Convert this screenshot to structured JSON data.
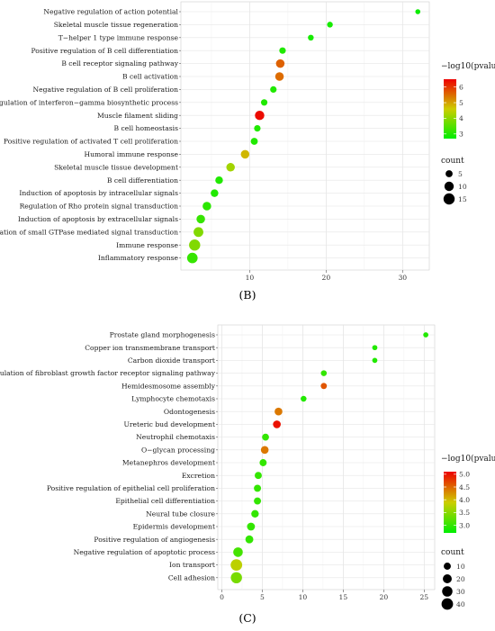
{
  "chart_data": [
    {
      "type": "scatter",
      "panel_label": "(B)",
      "x_ticks": [
        10,
        20,
        30
      ],
      "xlim": [
        1,
        33.5
      ],
      "xlabel": "",
      "ylabel": "",
      "grid": true,
      "color_scale": {
        "title": "−log10(pvalue)",
        "ticks": [
          3,
          4,
          5,
          6
        ],
        "range": [
          2.7,
          6.5
        ],
        "low_color": "#00ee00",
        "high_color": "#ee0000"
      },
      "size_scale": {
        "title": "count",
        "ticks": [
          5,
          10,
          15
        ]
      },
      "points": [
        {
          "term": "Negative regulation of action potential",
          "x": 32,
          "color_value": 2.8,
          "size_value": 2
        },
        {
          "term": "Skeletal muscle tissue regeneration",
          "x": 20.5,
          "color_value": 2.9,
          "size_value": 3
        },
        {
          "term": "T−helper 1 type immune response",
          "x": 18,
          "color_value": 2.9,
          "size_value": 3
        },
        {
          "term": "Positive regulation of B cell differentiation",
          "x": 14.3,
          "color_value": 3.0,
          "size_value": 4
        },
        {
          "term": "B cell receptor signaling pathway",
          "x": 14,
          "color_value": 5.6,
          "size_value": 8
        },
        {
          "term": "B cell activation",
          "x": 13.9,
          "color_value": 5.5,
          "size_value": 8
        },
        {
          "term": "Negative regulation of B cell proliferation",
          "x": 13.1,
          "color_value": 3.0,
          "size_value": 4
        },
        {
          "term": "Positive regulation of interferon−gamma biosynthetic process",
          "x": 11.9,
          "color_value": 3.0,
          "size_value": 4
        },
        {
          "term": "Muscle filament sliding",
          "x": 11.3,
          "color_value": 6.4,
          "size_value": 10
        },
        {
          "term": "B cell homeostasis",
          "x": 11,
          "color_value": 3.0,
          "size_value": 4
        },
        {
          "term": "Positive regulation of activated T cell proliferation",
          "x": 10.6,
          "color_value": 3.0,
          "size_value": 5
        },
        {
          "term": "Humoral immune response",
          "x": 9.4,
          "color_value": 4.8,
          "size_value": 8
        },
        {
          "term": "Skeletal muscle tissue development",
          "x": 7.5,
          "color_value": 4.2,
          "size_value": 8
        },
        {
          "term": "B cell differentiation",
          "x": 6,
          "color_value": 3.0,
          "size_value": 6
        },
        {
          "term": "Induction of apoptosis by intracellular signals",
          "x": 5.4,
          "color_value": 3.0,
          "size_value": 6
        },
        {
          "term": "Regulation of Rho protein signal transduction",
          "x": 4.4,
          "color_value": 3.1,
          "size_value": 8
        },
        {
          "term": "Induction of apoptosis by extracellular signals",
          "x": 3.6,
          "color_value": 3.2,
          "size_value": 8
        },
        {
          "term": "Regulation of small GTPase mediated signal transduction",
          "x": 3.3,
          "color_value": 3.9,
          "size_value": 11
        },
        {
          "term": "Immune response",
          "x": 2.8,
          "color_value": 3.9,
          "size_value": 15
        },
        {
          "term": "Inflammatory response",
          "x": 2.5,
          "color_value": 3.2,
          "size_value": 13
        }
      ]
    },
    {
      "type": "scatter",
      "panel_label": "(C)",
      "x_ticks": [
        0,
        5,
        10,
        15,
        20,
        25
      ],
      "xlim": [
        -0.5,
        26.3
      ],
      "xlabel": "",
      "ylabel": "",
      "grid": true,
      "color_scale": {
        "title": "−log10(pvalue)",
        "ticks": [
          3.0,
          3.5,
          4.0,
          4.5,
          5.0
        ],
        "range": [
          2.7,
          5.1
        ],
        "low_color": "#00ee00",
        "high_color": "#ee0000"
      },
      "size_scale": {
        "title": "count",
        "ticks": [
          10,
          20,
          30,
          40
        ]
      },
      "points": [
        {
          "term": "Prostate gland morphogenesis",
          "x": 25.2,
          "color_value": 2.9,
          "size_value": 3
        },
        {
          "term": "Copper ion transmembrane transport",
          "x": 18.9,
          "color_value": 2.9,
          "size_value": 3
        },
        {
          "term": "Carbon dioxide transport",
          "x": 18.9,
          "color_value": 2.9,
          "size_value": 3
        },
        {
          "term": "Negative regulation of fibroblast growth factor receptor signaling pathway",
          "x": 12.6,
          "color_value": 3.0,
          "size_value": 5
        },
        {
          "term": "Hemidesmosome assembly",
          "x": 12.6,
          "color_value": 4.6,
          "size_value": 6
        },
        {
          "term": "Lymphocyte chemotaxis",
          "x": 10.1,
          "color_value": 2.9,
          "size_value": 5
        },
        {
          "term": "Odontogenesis",
          "x": 7.0,
          "color_value": 4.4,
          "size_value": 13
        },
        {
          "term": "Ureteric bud development",
          "x": 6.8,
          "color_value": 5.0,
          "size_value": 13
        },
        {
          "term": "Neutrophil chemotaxis",
          "x": 5.4,
          "color_value": 3.0,
          "size_value": 9
        },
        {
          "term": "O−glycan processing",
          "x": 5.3,
          "color_value": 4.4,
          "size_value": 13
        },
        {
          "term": "Metanephros development",
          "x": 5.1,
          "color_value": 3.0,
          "size_value": 10
        },
        {
          "term": "Excretion",
          "x": 4.5,
          "color_value": 3.0,
          "size_value": 10
        },
        {
          "term": "Positive regulation of epithelial cell proliferation",
          "x": 4.4,
          "color_value": 3.0,
          "size_value": 10
        },
        {
          "term": "Epithelial cell differentiation",
          "x": 4.4,
          "color_value": 3.0,
          "size_value": 10
        },
        {
          "term": "Neural tube closure",
          "x": 4.1,
          "color_value": 3.0,
          "size_value": 12
        },
        {
          "term": "Epidermis development",
          "x": 3.6,
          "color_value": 3.0,
          "size_value": 14
        },
        {
          "term": "Positive regulation of angiogenesis",
          "x": 3.4,
          "color_value": 3.0,
          "size_value": 14
        },
        {
          "term": "Negative regulation of apoptotic process",
          "x": 2.0,
          "color_value": 3.1,
          "size_value": 24
        },
        {
          "term": "Ion transport",
          "x": 1.8,
          "color_value": 3.8,
          "size_value": 40
        },
        {
          "term": "Cell adhesion",
          "x": 1.8,
          "color_value": 3.4,
          "size_value": 37
        }
      ]
    }
  ]
}
